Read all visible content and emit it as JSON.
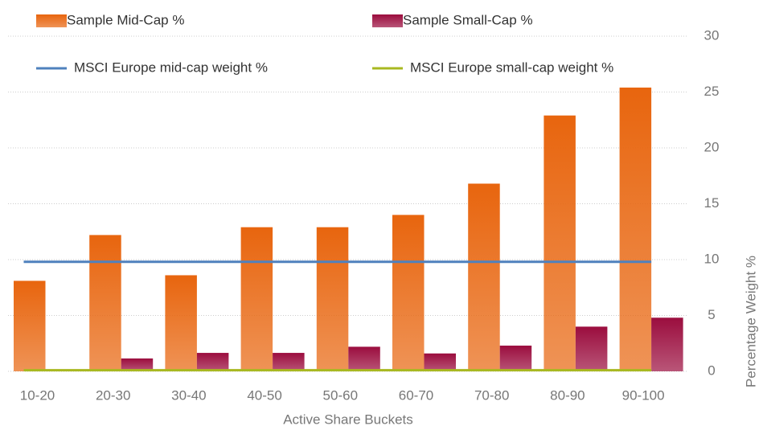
{
  "chart_data": {
    "type": "bar",
    "categories": [
      "10-20",
      "20-30",
      "30-40",
      "40-50",
      "50-60",
      "60-70",
      "70-80",
      "80-90",
      "90-100"
    ],
    "series": [
      {
        "name": "Sample Mid-Cap %",
        "type": "bar",
        "color": "#e8650e",
        "values": [
          8.1,
          12.2,
          8.6,
          12.9,
          12.9,
          14.0,
          16.8,
          22.9,
          25.4
        ]
      },
      {
        "name": "Sample Small-Cap %",
        "type": "bar",
        "color": "#9b0d3e",
        "values": [
          0,
          1.15,
          1.65,
          1.65,
          2.2,
          1.6,
          2.3,
          4.0,
          4.8
        ]
      },
      {
        "name": "MSCI Europe mid-cap weight %",
        "type": "line",
        "color": "#4f81bd",
        "values": [
          9.8,
          9.8,
          9.8,
          9.8,
          9.8,
          9.8,
          9.8,
          9.8,
          9.8
        ]
      },
      {
        "name": "MSCI Europe small-cap weight %",
        "type": "line",
        "color": "#a8b820",
        "values": [
          0.1,
          0.1,
          0.1,
          0.1,
          0.1,
          0.1,
          0.1,
          0.1,
          0.1
        ]
      }
    ],
    "x_label": "Active Share Buckets",
    "y_label": "Percentage Weight %",
    "ylim": [
      0,
      30
    ],
    "yticks": [
      0,
      5,
      10,
      15,
      20,
      25,
      30
    ],
    "grid": true,
    "y_axis_side": "right",
    "legend": "top"
  }
}
